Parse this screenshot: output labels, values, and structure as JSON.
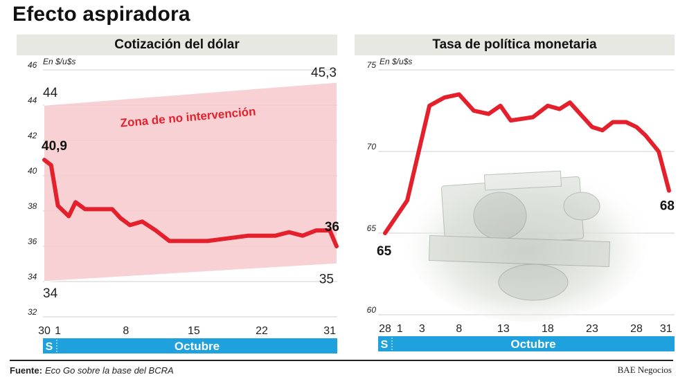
{
  "title": "Efecto aspiradora",
  "source_label": "Fuente:",
  "source_text": "Eco Go sobre la base del BCRA",
  "brand": "BAE Negocios",
  "colors": {
    "line": "#e3202b",
    "zone": "#f7c9cd",
    "month_bar": "#1ea1dc",
    "header_bg": "#e8e8e2"
  },
  "chart_data": [
    {
      "type": "line",
      "title": "Cotización del dólar",
      "unit_label": "En $/u$s",
      "ylim": [
        32,
        46
      ],
      "yticks": [
        32,
        34,
        36,
        38,
        40,
        42,
        44,
        46
      ],
      "x_ticks": [
        {
          "label": "30",
          "x": 0
        },
        {
          "label": "1",
          "x": 1
        },
        {
          "label": "8",
          "x": 6
        },
        {
          "label": "15",
          "x": 11
        },
        {
          "label": "22",
          "x": 16
        },
        {
          "label": "31",
          "x": 21
        }
      ],
      "xlim": [
        0,
        21.5
      ],
      "month_prefix": "S",
      "month_label": "Octubre",
      "grid": true,
      "band": {
        "label": "Zona de no intervención",
        "upper": [
          {
            "x": 0,
            "y": 44
          },
          {
            "x": 21.5,
            "y": 45.3
          }
        ],
        "lower": [
          {
            "x": 0,
            "y": 34
          },
          {
            "x": 21.5,
            "y": 35
          }
        ],
        "upper_start_label": "44",
        "upper_end_label": "45,3",
        "lower_start_label": "34",
        "lower_end_label": "35"
      },
      "series": [
        {
          "x": [
            0,
            0.5,
            1,
            1.8,
            2.3,
            3,
            4,
            5,
            5.6,
            6.3,
            7.2,
            8.2,
            9.2,
            10,
            11,
            12,
            13,
            14,
            15,
            16,
            17,
            18,
            19,
            20,
            21,
            21.5
          ],
          "y": [
            40.9,
            40.6,
            38.3,
            37.7,
            38.5,
            38.1,
            38.1,
            38.1,
            37.6,
            37.2,
            37.4,
            36.9,
            36.3,
            36.3,
            36.3,
            36.3,
            36.4,
            36.5,
            36.6,
            36.6,
            36.6,
            36.8,
            36.6,
            36.9,
            36.9,
            36.0
          ]
        }
      ],
      "annotations": [
        {
          "text": "40,9",
          "x": 0,
          "y": 40.9
        },
        {
          "text": "36",
          "x": 21.5,
          "y": 36.0
        }
      ]
    },
    {
      "type": "line",
      "title": "Tasa de política monetaria",
      "unit_label": "En $/u$s",
      "ylim": [
        60,
        75
      ],
      "yticks": [
        60,
        65,
        70,
        75
      ],
      "x_ticks": [
        {
          "label": "28",
          "x": 0
        },
        {
          "label": "1",
          "x": 1
        },
        {
          "label": "3",
          "x": 2.5
        },
        {
          "label": "8",
          "x": 5
        },
        {
          "label": "13",
          "x": 8
        },
        {
          "label": "18",
          "x": 11
        },
        {
          "label": "23",
          "x": 14
        },
        {
          "label": "28",
          "x": 17
        },
        {
          "label": "31",
          "x": 19
        }
      ],
      "xlim": [
        0,
        19.2
      ],
      "month_prefix": "S",
      "month_label": "Octubre",
      "grid": true,
      "series": [
        {
          "x": [
            0,
            1.5,
            3,
            4,
            5,
            6,
            7,
            7.8,
            8.5,
            10,
            11,
            11.8,
            12.5,
            14,
            14.7,
            15.4,
            16.3,
            17,
            17.6,
            18.5,
            19.2
          ],
          "y": [
            65,
            67,
            72.8,
            73.3,
            73.5,
            72.5,
            72.3,
            72.8,
            71.9,
            72.1,
            72.8,
            72.6,
            73.0,
            71.5,
            71.3,
            71.8,
            71.8,
            71.5,
            71.0,
            70.0,
            67.6
          ]
        }
      ],
      "annotations": [
        {
          "text": "65",
          "x": 0,
          "y": 65
        },
        {
          "text": "68",
          "x": 19.2,
          "y": 67.6
        }
      ]
    }
  ]
}
